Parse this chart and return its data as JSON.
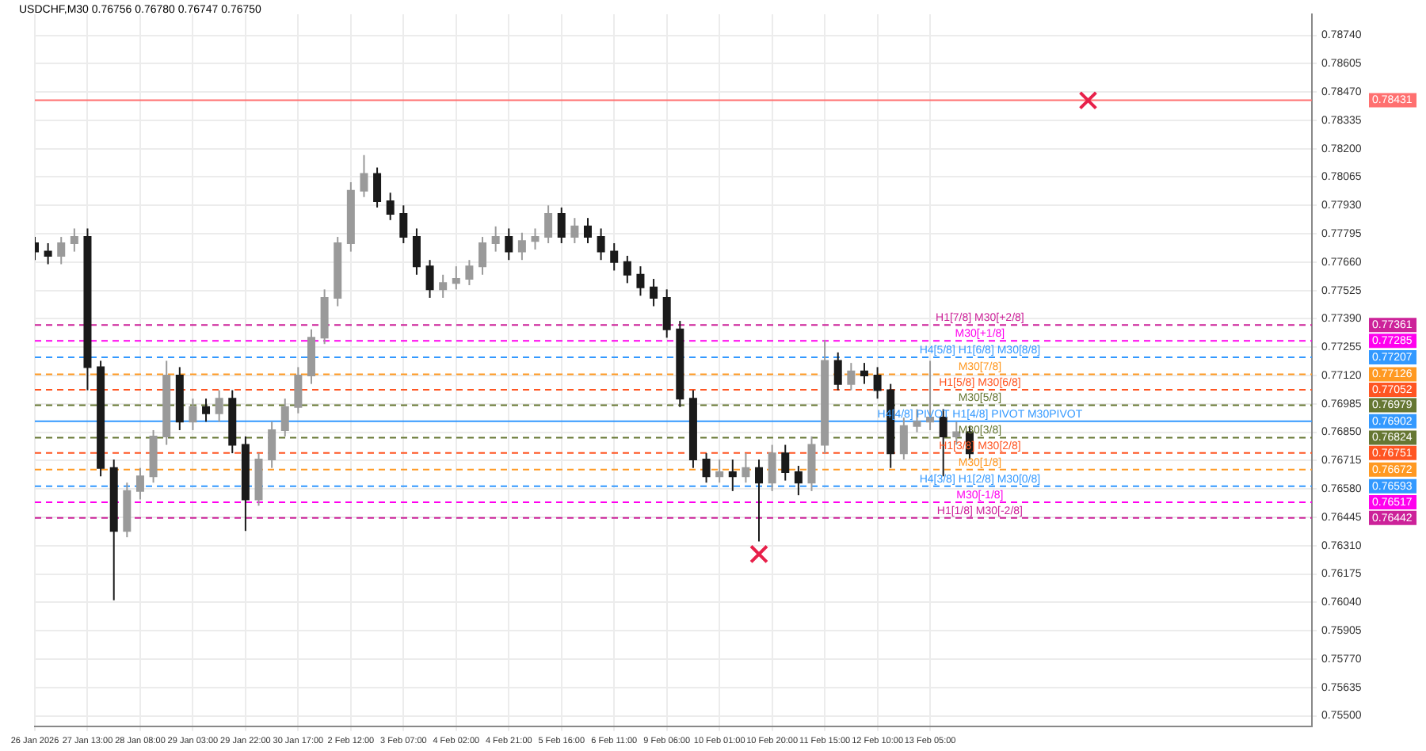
{
  "chart_data": {
    "type": "candlestick",
    "title": "USDCHF,M30 0.76756 0.76780 0.76747 0.76750",
    "colors": [
      "#1a1a1a",
      "#1a1a1a",
      "#9a9a9a",
      "#9a9a9a",
      "#1a1a1a",
      "#1a1a1a",
      "#1a1a1a",
      "#9a9a9a",
      "#9a9a9a",
      "#9a9a9a",
      "#9a9a9a",
      "#1a1a1a",
      "#9a9a9a",
      "#1a1a1a",
      "#9a9a9a",
      "#1a1a1a",
      "#1a1a1a",
      "#9a9a9a",
      "#9a9a9a",
      "#9a9a9a",
      "#9a9a9a",
      "#9a9a9a",
      "#9a9a9a",
      "#9a9a9a",
      "#9a9a9a",
      "#9a9a9a",
      "#1a1a1a",
      "#1a1a1a",
      "#1a1a1a",
      "#1a1a1a",
      "#1a1a1a",
      "#9a9a9a",
      "#9a9a9a",
      "#9a9a9a",
      "#9a9a9a",
      "#9a9a9a",
      "#1a1a1a",
      "#9a9a9a",
      "#9a9a9a",
      "#9a9a9a",
      "#1a1a1a",
      "#9a9a9a",
      "#1a1a1a",
      "#1a1a1a",
      "#1a1a1a",
      "#1a1a1a",
      "#1a1a1a",
      "#1a1a1a",
      "#1a1a1a",
      "#1a1a1a",
      "#1a1a1a",
      "#1a1a1a",
      "#9a9a9a",
      "#1a1a1a",
      "#9a9a9a",
      "#1a1a1a",
      "#9a9a9a",
      "#1a1a1a",
      "#1a1a1a",
      "#9a9a9a",
      "#9a9a9a",
      "#1a1a1a",
      "#9a9a9a",
      "#1a1a1a",
      "#1a1a1a",
      "#1a1a1a",
      "#9a9a9a",
      "#9a9a9a",
      "#9a9a9a",
      "#1a1a1a",
      "#9a9a9a",
      "#1a1a1a",
      null,
      null,
      null,
      null,
      null,
      null,
      null,
      null,
      null,
      null,
      null,
      null,
      null,
      null,
      null,
      null,
      null,
      null,
      null,
      null,
      null,
      null,
      null,
      null,
      null,
      null
    ],
    "grid": true,
    "categories": [
      "26 Jan 2026",
      null,
      null,
      null,
      "27 Jan 13:00",
      null,
      null,
      null,
      "28 Jan 08:00",
      null,
      null,
      null,
      "29 Jan 03:00",
      null,
      null,
      null,
      "29 Jan 22:00",
      null,
      null,
      null,
      "30 Jan 17:00",
      null,
      null,
      null,
      "2 Feb 12:00",
      null,
      null,
      null,
      "3 Feb 07:00",
      null,
      null,
      null,
      "4 Feb 02:00",
      null,
      null,
      null,
      "4 Feb 21:00",
      null,
      null,
      null,
      "5 Feb 16:00",
      null,
      null,
      null,
      "6 Feb 11:00",
      null,
      null,
      null,
      "9 Feb 06:00",
      null,
      null,
      null,
      "10 Feb 01:00",
      null,
      null,
      null,
      "10 Feb 20:00",
      null,
      null,
      null,
      "11 Feb 15:00",
      null,
      null,
      null,
      "12 Feb 10:00",
      null,
      null,
      null,
      "13 Feb 05:00",
      null,
      null,
      null,
      null,
      null,
      null,
      null,
      null,
      null,
      null,
      null,
      null,
      null,
      null,
      null,
      null,
      null,
      null,
      null,
      null,
      null,
      null,
      null,
      null,
      null,
      null,
      null,
      null,
      null
    ],
    "ohlc": [
      [
        0.7775,
        0.7778,
        0.7767,
        0.7771
      ],
      [
        0.7771,
        0.7775,
        0.7765,
        0.7769
      ],
      [
        0.7769,
        0.7778,
        0.7765,
        0.7775
      ],
      [
        0.7775,
        0.7782,
        0.7771,
        0.7778
      ],
      [
        0.7778,
        0.7782,
        0.7705,
        0.7716
      ],
      [
        0.7716,
        0.7719,
        0.7664,
        0.7668
      ],
      [
        0.7668,
        0.7672,
        0.7605,
        0.7638
      ],
      [
        0.7638,
        0.7661,
        0.7635,
        0.7657
      ],
      [
        0.7657,
        0.7668,
        0.7653,
        0.7664
      ],
      [
        0.7664,
        0.7686,
        0.7661,
        0.7683
      ],
      [
        0.7683,
        0.7719,
        0.7679,
        0.7712
      ],
      [
        0.7712,
        0.7716,
        0.7686,
        0.769
      ],
      [
        0.769,
        0.7701,
        0.7686,
        0.7697
      ],
      [
        0.7697,
        0.7701,
        0.769,
        0.7694
      ],
      [
        0.7694,
        0.7705,
        0.769,
        0.7701
      ],
      [
        0.7701,
        0.7705,
        0.7675,
        0.7679
      ],
      [
        0.7679,
        0.7683,
        0.7638,
        0.7653
      ],
      [
        0.7653,
        0.7675,
        0.765,
        0.7672
      ],
      [
        0.7672,
        0.769,
        0.7668,
        0.7686
      ],
      [
        0.7686,
        0.7701,
        0.7683,
        0.7697
      ],
      [
        0.7697,
        0.7716,
        0.7694,
        0.7712
      ],
      [
        0.7712,
        0.7734,
        0.7708,
        0.773
      ],
      [
        0.773,
        0.7753,
        0.7727,
        0.7749
      ],
      [
        0.7749,
        0.7778,
        0.7745,
        0.7775
      ],
      [
        0.7775,
        0.7804,
        0.7771,
        0.78
      ],
      [
        0.78,
        0.7817,
        0.7797,
        0.7808
      ],
      [
        0.7808,
        0.7811,
        0.7792,
        0.7795
      ],
      [
        0.7795,
        0.7799,
        0.7786,
        0.7789
      ],
      [
        0.7789,
        0.7793,
        0.7775,
        0.7778
      ],
      [
        0.7778,
        0.7782,
        0.776,
        0.7764
      ],
      [
        0.7764,
        0.7767,
        0.7749,
        0.7753
      ],
      [
        0.7753,
        0.776,
        0.7749,
        0.7756
      ],
      [
        0.7756,
        0.7764,
        0.7753,
        0.7758
      ],
      [
        0.7758,
        0.7767,
        0.7755,
        0.7764
      ],
      [
        0.7764,
        0.7778,
        0.776,
        0.7775
      ],
      [
        0.7775,
        0.7783,
        0.7771,
        0.7778
      ],
      [
        0.7778,
        0.7782,
        0.7767,
        0.7771
      ],
      [
        0.7771,
        0.778,
        0.7767,
        0.7776
      ],
      [
        0.7776,
        0.7782,
        0.7772,
        0.7778
      ],
      [
        0.7778,
        0.7793,
        0.7775,
        0.7789
      ],
      [
        0.7789,
        0.7792,
        0.7775,
        0.7778
      ],
      [
        0.7778,
        0.7787,
        0.7775,
        0.7783
      ],
      [
        0.7783,
        0.7787,
        0.7775,
        0.7778
      ],
      [
        0.7778,
        0.7782,
        0.7767,
        0.7771
      ],
      [
        0.7771,
        0.7775,
        0.7762,
        0.7766
      ],
      [
        0.7766,
        0.7769,
        0.7756,
        0.776
      ],
      [
        0.776,
        0.7764,
        0.775,
        0.7754
      ],
      [
        0.7754,
        0.7758,
        0.7745,
        0.7749
      ],
      [
        0.7749,
        0.7753,
        0.773,
        0.7734
      ],
      [
        0.7734,
        0.7738,
        0.7697,
        0.7701
      ],
      [
        0.7701,
        0.7705,
        0.7668,
        0.7672
      ],
      [
        0.7672,
        0.7675,
        0.7661,
        0.7664
      ],
      [
        0.7664,
        0.7672,
        0.7661,
        0.7666
      ],
      [
        0.7666,
        0.7672,
        0.7657,
        0.7664
      ],
      [
        0.7664,
        0.7675,
        0.7661,
        0.7668
      ],
      [
        0.7668,
        0.7672,
        0.7633,
        0.7661
      ],
      [
        0.7661,
        0.7679,
        0.7657,
        0.7675
      ],
      [
        0.7675,
        0.7679,
        0.7662,
        0.7666
      ],
      [
        0.7666,
        0.7669,
        0.7655,
        0.7661
      ],
      [
        0.7661,
        0.7683,
        0.7657,
        0.7679
      ],
      [
        0.7679,
        0.7729,
        0.7675,
        0.7719
      ],
      [
        0.7719,
        0.7723,
        0.7705,
        0.7708
      ],
      [
        0.7708,
        0.7718,
        0.7705,
        0.7714
      ],
      [
        0.7714,
        0.7718,
        0.7708,
        0.7712
      ],
      [
        0.7712,
        0.7716,
        0.7701,
        0.7705
      ],
      [
        0.7705,
        0.7708,
        0.7668,
        0.7675
      ],
      [
        0.7675,
        0.7692,
        0.7672,
        0.7688
      ],
      [
        0.7688,
        0.7696,
        0.7685,
        0.769
      ],
      [
        0.769,
        0.7719,
        0.7686,
        0.7692
      ],
      [
        0.7692,
        0.7696,
        0.7664,
        0.7683
      ],
      [
        0.7683,
        0.769,
        0.7679,
        0.7685
      ],
      [
        0.7685,
        0.7688,
        0.7672,
        0.7675
      ],
      null,
      null,
      null,
      null,
      null,
      null,
      null,
      null,
      null,
      null,
      null,
      null,
      null,
      null,
      null,
      null,
      null,
      null,
      null,
      null,
      null,
      null,
      null,
      null,
      null,
      null
    ],
    "series": [
      {
        "type": "scatter",
        "color": "#e8204a",
        "marker": "cross",
        "values": [
          null,
          null,
          null,
          null,
          null,
          null,
          null,
          null,
          null,
          null,
          null,
          null,
          null,
          null,
          null,
          null,
          null,
          null,
          null,
          null,
          null,
          null,
          null,
          null,
          null,
          null,
          null,
          null,
          null,
          null,
          null,
          null,
          null,
          null,
          null,
          null,
          null,
          null,
          null,
          null,
          null,
          null,
          null,
          null,
          null,
          null,
          null,
          null,
          null,
          null,
          null,
          null,
          null,
          null,
          null,
          0.7627,
          null,
          null,
          null,
          null,
          null,
          null,
          null,
          null,
          null,
          null,
          null,
          null,
          null,
          null,
          null,
          null,
          null,
          null,
          null,
          null,
          null,
          null,
          null,
          null,
          0.7843,
          null,
          null,
          null,
          null,
          null,
          null,
          null,
          null,
          null,
          null,
          null,
          null,
          null,
          null,
          null,
          null,
          null
        ]
      }
    ],
    "ylim": [
      0.7545,
      0.7884
    ],
    "yticks": [
      {
        "value": 0.755,
        "label": "0.75500"
      },
      {
        "value": 0.75635,
        "label": "0.75635"
      },
      {
        "value": 0.7577,
        "label": "0.75770"
      },
      {
        "value": 0.75905,
        "label": "0.75905"
      },
      {
        "value": 0.7604,
        "label": "0.76040"
      },
      {
        "value": 0.76175,
        "label": "0.76175"
      },
      {
        "value": 0.7631,
        "label": "0.76310"
      },
      {
        "value": 0.76445,
        "label": "0.76445"
      },
      {
        "value": 0.7658,
        "label": "0.76580"
      },
      {
        "value": 0.76715,
        "label": "0.76715"
      },
      {
        "value": 0.7685,
        "label": "0.76850"
      },
      {
        "value": 0.76985,
        "label": "0.76985"
      },
      {
        "value": 0.7712,
        "label": "0.77120"
      },
      {
        "value": 0.77255,
        "label": "0.77255"
      },
      {
        "value": 0.7739,
        "label": "0.77390"
      },
      {
        "value": 0.77525,
        "label": "0.77525"
      },
      {
        "value": 0.7766,
        "label": "0.77660"
      },
      {
        "value": 0.77795,
        "label": "0.77795"
      },
      {
        "value": 0.7793,
        "label": "0.77930"
      },
      {
        "value": 0.78065,
        "label": "0.78065"
      },
      {
        "value": 0.782,
        "label": "0.78200"
      },
      {
        "value": 0.78335,
        "label": "0.78335"
      },
      {
        "value": 0.7847,
        "label": "0.78470"
      },
      {
        "value": 0.78605,
        "label": "0.78605"
      },
      {
        "value": 0.7874,
        "label": "0.78740"
      }
    ],
    "ref_lines": [
      {
        "axis": "y",
        "value": 0.78431,
        "color": "#ff7070",
        "line_style": "solid"
      },
      {
        "axis": "y",
        "value": 0.77361,
        "label": "H1[7/8] M30[+2/8]",
        "color": "#cc2299",
        "line_style": "dashed"
      },
      {
        "axis": "y",
        "value": 0.77285,
        "label": "M30[+1/8]",
        "color": "#ff00ee",
        "line_style": "dashed"
      },
      {
        "axis": "y",
        "value": 0.77207,
        "label": "H4[5/8] H1[6/8] M30[8/8]",
        "color": "#3399ff",
        "line_style": "dashed"
      },
      {
        "axis": "y",
        "value": 0.77126,
        "label": "M30[7/8]",
        "color": "#ff9922",
        "line_style": "dashed"
      },
      {
        "axis": "y",
        "value": 0.77052,
        "label": "H1[5/8] M30[6/8]",
        "color": "#ff5522",
        "line_style": "dashed"
      },
      {
        "axis": "y",
        "value": 0.76979,
        "label": "M30[5/8]",
        "color": "#667733",
        "line_style": "dashed"
      },
      {
        "axis": "y",
        "value": 0.76902,
        "label": "H4[4/8] PIVOT H1[4/8] PIVOT M30PIVOT",
        "color": "#3399ff",
        "line_style": "solid"
      },
      {
        "axis": "y",
        "value": 0.76824,
        "label": "M30[3/8]",
        "color": "#667733",
        "line_style": "dashed"
      },
      {
        "axis": "y",
        "value": 0.76751,
        "label": "H1[3/8] M30[2/8]",
        "color": "#ff5522",
        "line_style": "dashed"
      },
      {
        "axis": "y",
        "value": 0.76672,
        "label": "M30[1/8]",
        "color": "#ff9922",
        "line_style": "dashed"
      },
      {
        "axis": "y",
        "value": 0.76593,
        "label": "H4[3/8] H1[2/8] M30[0/8]",
        "color": "#3399ff",
        "line_style": "dashed"
      },
      {
        "axis": "y",
        "value": 0.76517,
        "label": "M30[-1/8]",
        "color": "#ff00ee",
        "line_style": "dashed"
      },
      {
        "axis": "y",
        "value": 0.76442,
        "label": "H1[1/8] M30[-2/8]",
        "color": "#cc2299",
        "line_style": "dashed"
      }
    ],
    "annotations": [
      "0.78431",
      "0.77361",
      "0.77285",
      "0.77207",
      "0.77126",
      "0.77052",
      "0.76979",
      "0.76902",
      "0.76824",
      "0.76751",
      "0.76672",
      "0.76593",
      "0.76517",
      "0.76442"
    ]
  }
}
